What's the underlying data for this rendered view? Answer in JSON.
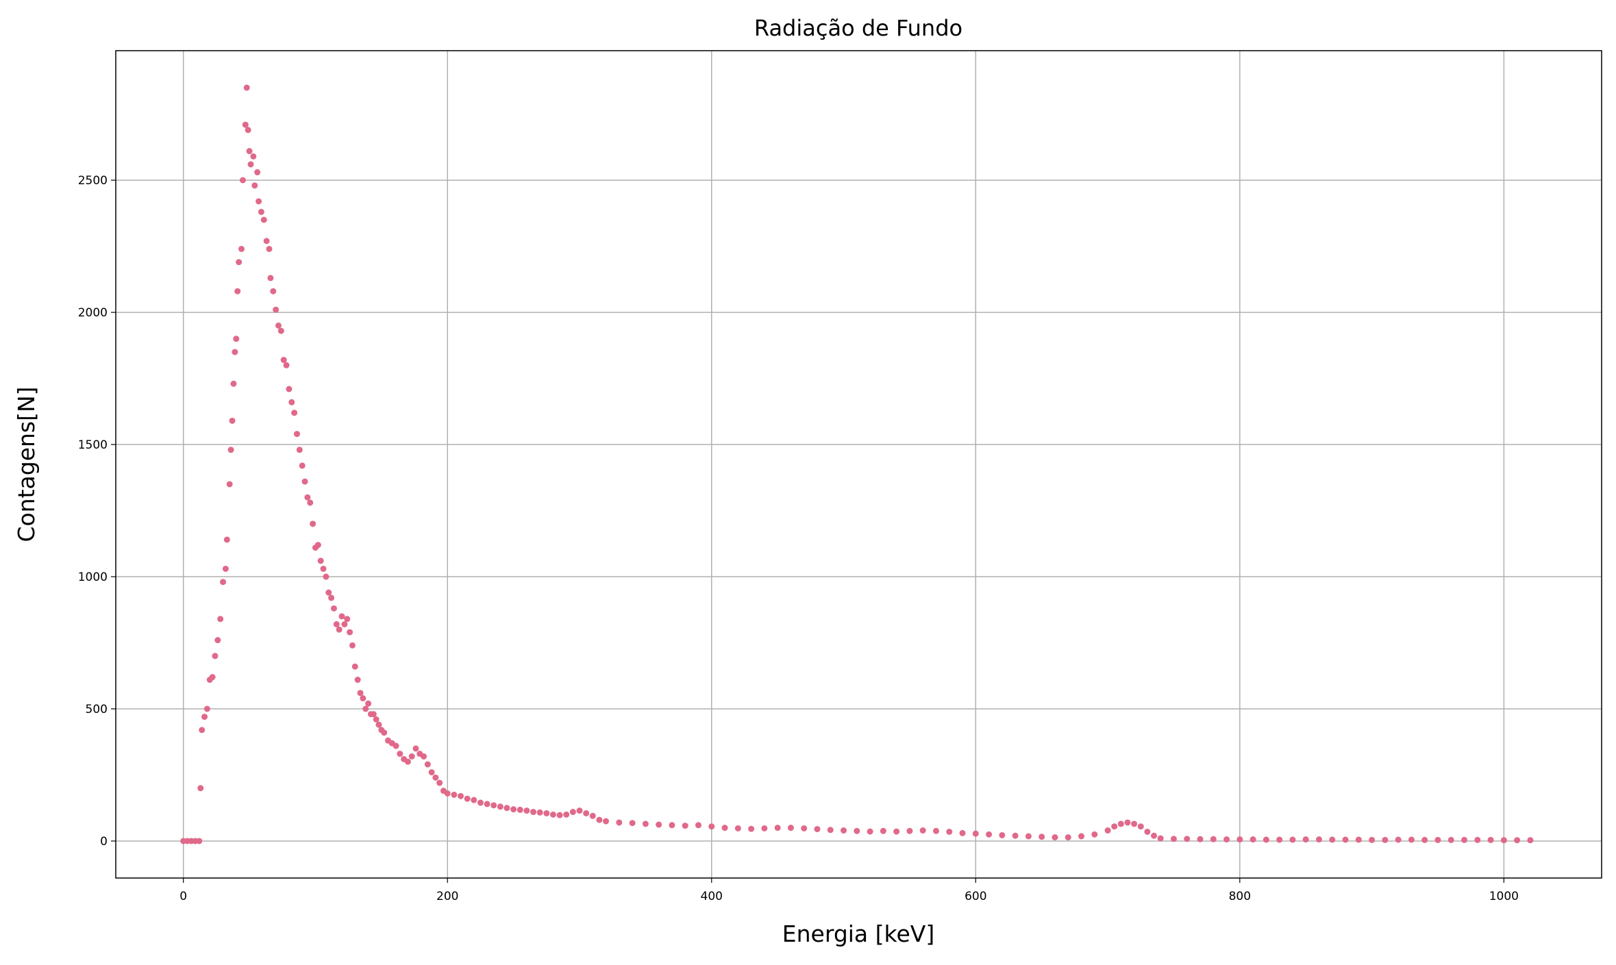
{
  "chart_data": {
    "type": "scatter",
    "title": "Radiação de Fundo",
    "x_label": "Energia [keV]",
    "y_label": "Contagens[N]",
    "xlim": [
      -51.2,
      1074
    ],
    "ylim": [
      -140,
      2990
    ],
    "xticks": [
      0,
      200,
      400,
      600,
      800,
      1000
    ],
    "yticks": [
      0,
      500,
      1000,
      1500,
      2000,
      2500
    ],
    "grid": true,
    "series": [
      {
        "color": "#e0698a",
        "x": [
          0,
          3,
          6,
          9,
          12,
          13,
          14,
          16,
          18,
          20,
          22,
          24,
          26,
          28,
          30,
          32,
          33,
          35,
          36,
          37,
          38,
          39,
          40,
          41,
          42,
          44,
          45,
          47,
          48,
          49,
          50,
          51,
          53,
          54,
          56,
          57,
          59,
          61,
          63,
          65,
          66,
          68,
          70,
          72,
          74,
          76,
          78,
          80,
          82,
          84,
          86,
          88,
          90,
          92,
          94,
          96,
          98,
          100,
          102,
          104,
          106,
          108,
          110,
          112,
          114,
          116,
          118,
          120,
          122,
          124,
          126,
          128,
          130,
          132,
          134,
          136,
          138,
          140,
          142,
          144,
          146,
          148,
          150,
          152,
          155,
          158,
          161,
          164,
          167,
          170,
          173,
          176,
          179,
          182,
          185,
          188,
          191,
          194,
          197,
          200,
          205,
          210,
          215,
          220,
          225,
          230,
          235,
          240,
          245,
          250,
          255,
          260,
          265,
          270,
          275,
          280,
          285,
          290,
          295,
          300,
          305,
          310,
          315,
          320,
          330,
          340,
          350,
          360,
          370,
          380,
          390,
          400,
          410,
          420,
          430,
          440,
          450,
          460,
          470,
          480,
          490,
          500,
          510,
          520,
          530,
          540,
          550,
          560,
          570,
          580,
          590,
          600,
          610,
          620,
          630,
          640,
          650,
          660,
          670,
          680,
          690,
          700,
          705,
          710,
          715,
          720,
          725,
          730,
          735,
          740,
          750,
          760,
          770,
          780,
          790,
          800,
          810,
          820,
          830,
          840,
          850,
          860,
          870,
          880,
          890,
          900,
          910,
          920,
          930,
          940,
          950,
          960,
          970,
          980,
          990,
          1000,
          1010,
          1020
        ],
        "values": [
          0,
          0,
          0,
          0,
          0,
          200,
          420,
          470,
          500,
          610,
          620,
          700,
          760,
          840,
          980,
          1030,
          1140,
          1350,
          1480,
          1590,
          1730,
          1850,
          1900,
          2080,
          2190,
          2240,
          2500,
          2710,
          2850,
          2690,
          2610,
          2560,
          2590,
          2480,
          2530,
          2420,
          2380,
          2350,
          2270,
          2240,
          2130,
          2080,
          2010,
          1950,
          1930,
          1820,
          1800,
          1710,
          1660,
          1620,
          1540,
          1480,
          1420,
          1360,
          1300,
          1280,
          1200,
          1110,
          1120,
          1060,
          1030,
          1000,
          940,
          920,
          880,
          820,
          800,
          850,
          820,
          840,
          790,
          740,
          660,
          610,
          560,
          540,
          500,
          520,
          480,
          480,
          460,
          440,
          420,
          410,
          380,
          370,
          360,
          330,
          310,
          300,
          320,
          350,
          330,
          320,
          290,
          260,
          240,
          220,
          190,
          180,
          175,
          170,
          160,
          155,
          145,
          140,
          135,
          130,
          125,
          120,
          118,
          115,
          110,
          108,
          105,
          100,
          98,
          100,
          110,
          115,
          105,
          95,
          80,
          75,
          70,
          68,
          65,
          62,
          60,
          58,
          60,
          55,
          50,
          48,
          46,
          48,
          50,
          50,
          48,
          45,
          42,
          40,
          38,
          36,
          38,
          36,
          38,
          40,
          38,
          35,
          30,
          28,
          25,
          22,
          20,
          18,
          16,
          14,
          14,
          18,
          25,
          40,
          55,
          65,
          70,
          65,
          55,
          35,
          20,
          10,
          8,
          8,
          7,
          7,
          6,
          6,
          6,
          5,
          5,
          5,
          6,
          6,
          5,
          5,
          5,
          4,
          4,
          5,
          5,
          4,
          4,
          4,
          4,
          4,
          4,
          3,
          3,
          3
        ]
      }
    ]
  }
}
